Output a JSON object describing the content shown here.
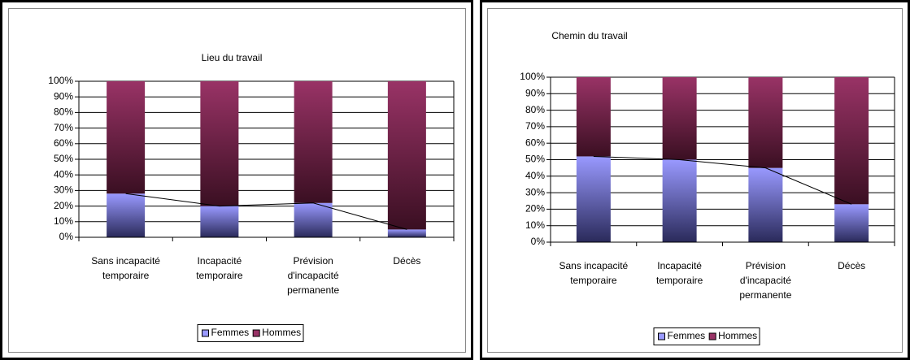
{
  "chart_data": [
    {
      "type": "bar",
      "stacked": true,
      "title": "Lieu du travail",
      "categories": [
        "Sans incapacité temporaire",
        "Incapacité temporaire",
        "Prévision d'incapacité permanente",
        "Décès"
      ],
      "series": [
        {
          "name": "Femmes",
          "color": "#9999ff",
          "values": [
            28,
            20,
            22,
            5
          ]
        },
        {
          "name": "Hommes",
          "color": "#993366",
          "values": [
            72,
            80,
            78,
            95
          ]
        }
      ],
      "ylim": [
        0,
        100
      ],
      "yticks": [
        {
          "value": 0,
          "label": "0%"
        },
        {
          "value": 10,
          "label": "10%"
        },
        {
          "value": 20,
          "label": "20%"
        },
        {
          "value": 30,
          "label": "30%"
        },
        {
          "value": 40,
          "label": "40%"
        },
        {
          "value": 50,
          "label": "50%"
        },
        {
          "value": 60,
          "label": "60%"
        },
        {
          "value": 70,
          "label": "70%"
        },
        {
          "value": 80,
          "label": "80%"
        },
        {
          "value": 90,
          "label": "90%"
        },
        {
          "value": 100,
          "label": "100%"
        }
      ],
      "grid": true,
      "legend": "bottom"
    },
    {
      "type": "bar",
      "stacked": true,
      "title": "Chemin du travail",
      "categories": [
        "Sans incapacité temporaire",
        "Incapacité temporaire",
        "Prévision d'incapacité permanente",
        "Décès"
      ],
      "series": [
        {
          "name": "Femmes",
          "color": "#9999ff",
          "values": [
            52,
            50,
            45,
            23
          ]
        },
        {
          "name": "Hommes",
          "color": "#993366",
          "values": [
            48,
            50,
            55,
            77
          ]
        }
      ],
      "ylim": [
        0,
        100
      ],
      "yticks": [
        {
          "value": 0,
          "label": "0%"
        },
        {
          "value": 10,
          "label": "10%"
        },
        {
          "value": 20,
          "label": "20%"
        },
        {
          "value": 30,
          "label": "30%"
        },
        {
          "value": 40,
          "label": "40%"
        },
        {
          "value": 50,
          "label": "50%"
        },
        {
          "value": 60,
          "label": "60%"
        },
        {
          "value": 70,
          "label": "70%"
        },
        {
          "value": 80,
          "label": "80%"
        },
        {
          "value": 90,
          "label": "90%"
        },
        {
          "value": 100,
          "label": "100%"
        }
      ],
      "grid": true,
      "legend": "bottom"
    }
  ]
}
